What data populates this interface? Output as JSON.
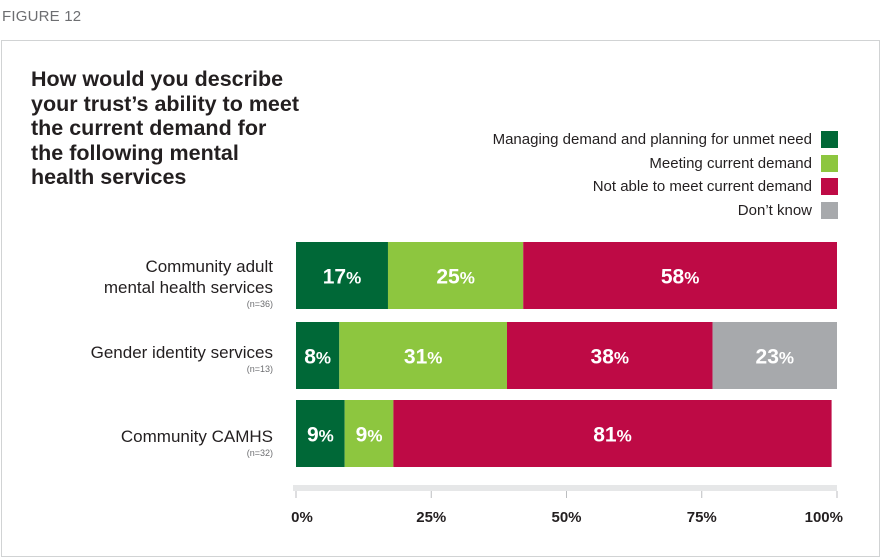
{
  "figure_label": "FIGURE 12",
  "chart_data": {
    "type": "bar",
    "orientation": "horizontal",
    "stacked": true,
    "title": "How would you describe your trust’s ability to meet the current demand for the following mental health services",
    "title_lines": [
      "How would you describe",
      "your trust’s ability to meet",
      "the current demand for",
      "the following mental",
      "health services"
    ],
    "categories": [
      "Community adult mental health services",
      "Gender identity services",
      "Community CAMHS"
    ],
    "category_lines": [
      [
        "Community adult",
        "mental health services"
      ],
      [
        "Gender identity services"
      ],
      [
        "Community CAMHS"
      ]
    ],
    "category_n": [
      "(n=36)",
      "(n=13)",
      "(n=32)"
    ],
    "series": [
      {
        "name": "Managing demand and planning for unmet need",
        "color": "#006837",
        "values": [
          17,
          8,
          9
        ]
      },
      {
        "name": "Meeting current demand",
        "color": "#8dc63f",
        "values": [
          25,
          31,
          9
        ]
      },
      {
        "name": "Not able to meet current demand",
        "color": "#be0a45",
        "values": [
          58,
          38,
          81
        ]
      },
      {
        "name": "Don’t know",
        "color": "#a7a9ac",
        "values": [
          0,
          23,
          0
        ]
      }
    ],
    "xlim": [
      0,
      100
    ],
    "xticks": [
      0,
      25,
      50,
      75,
      100
    ],
    "xtick_labels": [
      "0%",
      "25%",
      "50%",
      "75%",
      "100%"
    ],
    "legend_position": "top-right",
    "grid": false
  }
}
